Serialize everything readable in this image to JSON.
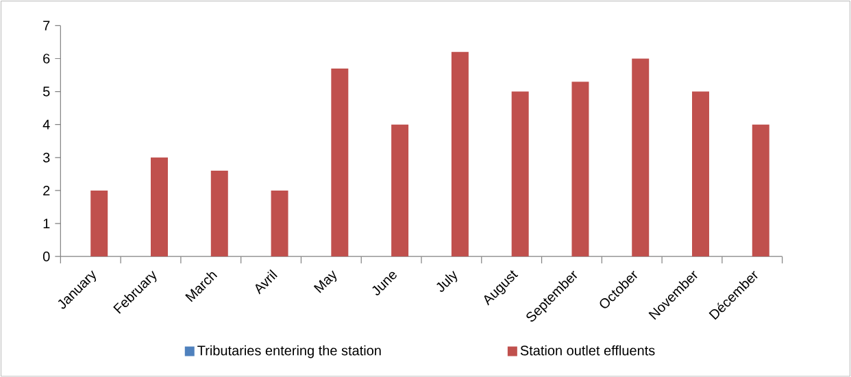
{
  "chart_data": {
    "type": "bar",
    "categories": [
      "January",
      "February",
      "March",
      "Avril",
      "May",
      "June",
      "July",
      "August",
      "September",
      "October",
      "November",
      "Décember"
    ],
    "series": [
      {
        "name": "Tributaries entering the station",
        "color": "#4f81bd",
        "values": [
          0,
          0,
          0,
          0,
          0,
          0,
          0,
          0,
          0,
          0,
          0,
          0
        ]
      },
      {
        "name": "Station outlet effluents",
        "color": "#c0504d",
        "values": [
          2,
          3,
          2.6,
          2,
          5.7,
          4,
          6.2,
          5,
          5.3,
          6,
          5,
          4
        ]
      }
    ],
    "ylim": [
      0,
      7
    ],
    "yticks": [
      0,
      1,
      2,
      3,
      4,
      5,
      6,
      7
    ],
    "grid": false,
    "legend": "bottom"
  }
}
